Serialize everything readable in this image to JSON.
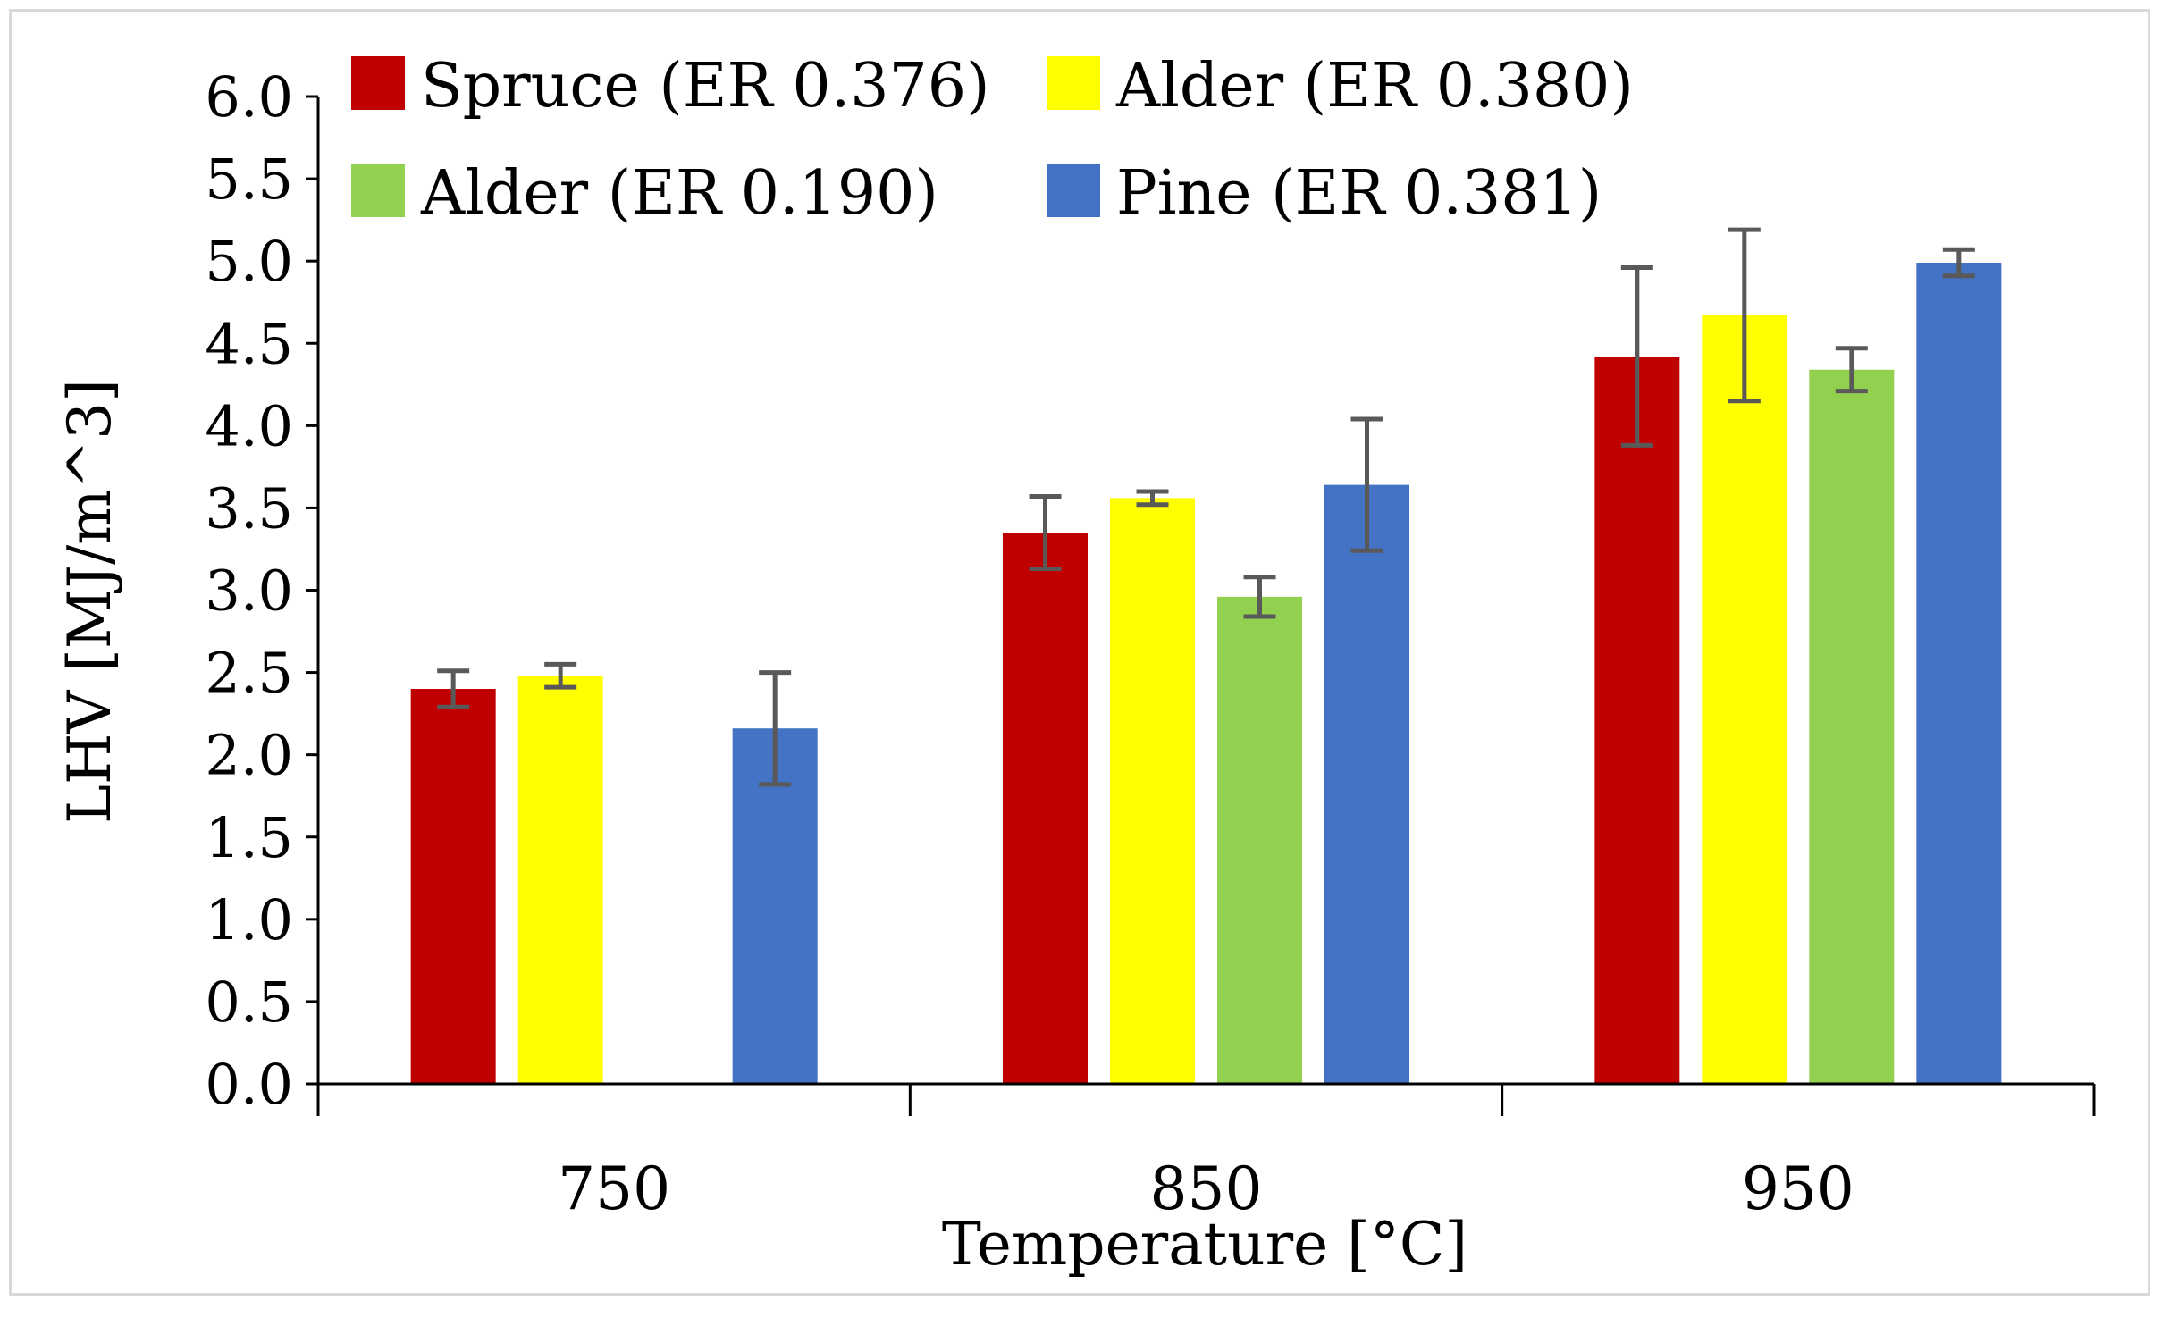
{
  "chart_data": {
    "type": "bar",
    "title": "",
    "xlabel": "Temperature [°C]",
    "ylabel": "LHV [MJ/m^3]",
    "categories": [
      "750",
      "850",
      "950"
    ],
    "ylim": [
      0,
      6
    ],
    "yticks": [
      "0.0",
      "0.5",
      "1.0",
      "1.5",
      "2.0",
      "2.5",
      "3.0",
      "3.5",
      "4.0",
      "4.5",
      "5.0",
      "5.5",
      "6.0"
    ],
    "grid": false,
    "legend_position": "top",
    "series": [
      {
        "name": "Spruce (ER 0.376)",
        "color": "#c00000",
        "values": [
          2.4,
          3.35,
          4.42
        ],
        "errors": [
          0.11,
          0.22,
          0.54
        ]
      },
      {
        "name": "Alder (ER 0.380)",
        "color": "#ffff00",
        "values": [
          2.48,
          3.56,
          4.67
        ],
        "errors": [
          0.07,
          0.04,
          0.52
        ]
      },
      {
        "name": "Alder (ER 0.190)",
        "color": "#92d050",
        "values": [
          0.0,
          2.96,
          4.34
        ],
        "errors": [
          0.0,
          0.12,
          0.13
        ]
      },
      {
        "name": "Pine (ER 0.381)",
        "color": "#4472c4",
        "values": [
          2.16,
          3.64,
          4.99
        ],
        "errors": [
          0.34,
          0.4,
          0.08
        ]
      }
    ]
  }
}
